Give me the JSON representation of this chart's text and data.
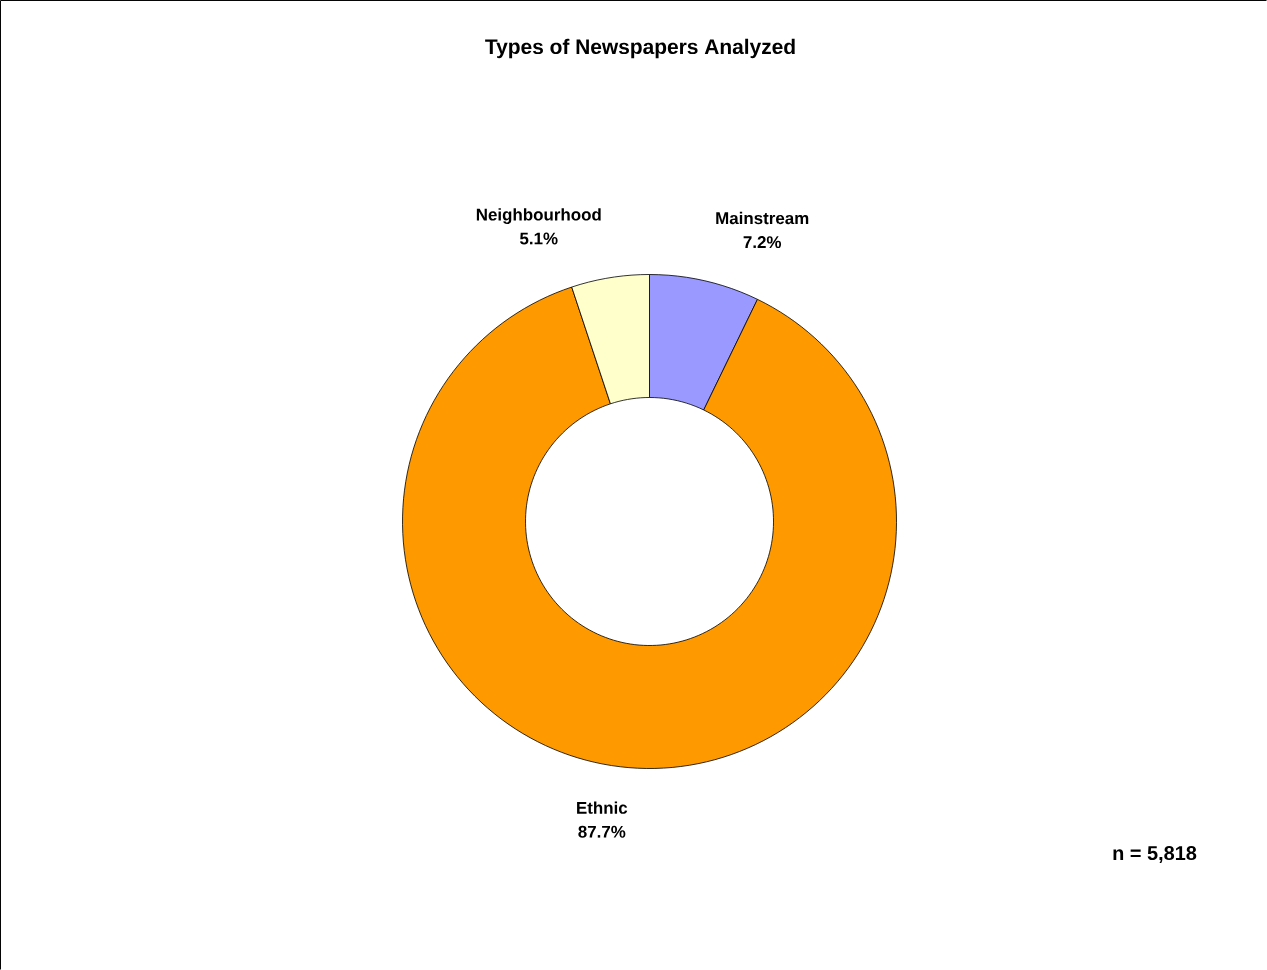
{
  "chart_data": {
    "type": "donut",
    "title": "Types of Newspapers Analyzed",
    "categories": [
      "Mainstream",
      "Ethnic",
      "Neighbourhood"
    ],
    "values": [
      7.2,
      87.7,
      5.1
    ],
    "value_labels": [
      "7.2%",
      "87.7%",
      "5.1%"
    ],
    "colors": [
      "#9999ff",
      "#ff9900",
      "#ffffcc"
    ],
    "annotations": [
      "n = 5,818"
    ]
  }
}
